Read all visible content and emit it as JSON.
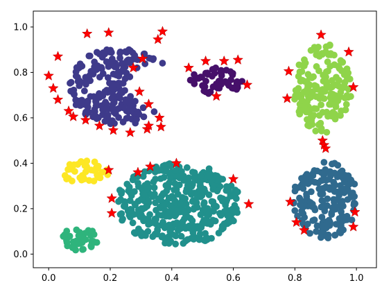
{
  "chart_data": {
    "type": "scatter",
    "title": "",
    "xlabel": "",
    "ylabel": "",
    "xlim": [
      -0.05,
      1.065
    ],
    "ylim": [
      -0.06,
      1.07
    ],
    "grid": false,
    "legend": "none",
    "x_ticks": [
      "0.0",
      "0.2",
      "0.4",
      "0.6",
      "0.8",
      "1.0"
    ],
    "x_tick_values": [
      0.0,
      0.2,
      0.4,
      0.6,
      0.8,
      1.0
    ],
    "y_ticks": [
      "0.0",
      "0.2",
      "0.4",
      "0.6",
      "0.8",
      "1.0"
    ],
    "y_tick_values": [
      0.0,
      0.2,
      0.4,
      0.6,
      0.8,
      1.0
    ],
    "clusters": [
      {
        "color": "#3e3a8a",
        "shape": "crescent",
        "center": [
          0.235,
          0.74
        ],
        "radius": 0.17,
        "inner_center": [
          0.36,
          0.74
        ],
        "inner_radius": 0.1,
        "count": 220
      },
      {
        "color": "#46106a",
        "shape": "ellipse",
        "center": [
          0.545,
          0.765
        ],
        "rx": 0.085,
        "ry": 0.062,
        "count": 55
      },
      {
        "color": "#8fd44a",
        "shape": "ellipse",
        "center": [
          0.89,
          0.73
        ],
        "rx": 0.095,
        "ry": 0.2,
        "count": 170
      },
      {
        "color": "#fde725",
        "shape": "ellipse",
        "center": [
          0.12,
          0.36
        ],
        "rx": 0.075,
        "ry": 0.055,
        "count": 40
      },
      {
        "color": "#21908c",
        "shape": "ellipse",
        "center": [
          0.42,
          0.22
        ],
        "rx": 0.205,
        "ry": 0.18,
        "count": 400
      },
      {
        "color": "#306a8e",
        "shape": "ellipse",
        "center": [
          0.9,
          0.24
        ],
        "rx": 0.105,
        "ry": 0.17,
        "count": 180
      },
      {
        "color": "#2fb47c",
        "shape": "ellipse",
        "center": [
          0.1,
          0.065
        ],
        "rx": 0.06,
        "ry": 0.052,
        "count": 40
      }
    ],
    "marker_color": "#ff0000",
    "markers": [
      [
        0.125,
        0.97
      ],
      [
        0.195,
        0.975
      ],
      [
        0.355,
        0.945
      ],
      [
        0.37,
        0.98
      ],
      [
        0.03,
        0.87
      ],
      [
        0.305,
        0.86
      ],
      [
        0.275,
        0.82
      ],
      [
        0.0,
        0.785
      ],
      [
        0.015,
        0.73
      ],
      [
        0.03,
        0.68
      ],
      [
        0.295,
        0.715
      ],
      [
        0.325,
        0.66
      ],
      [
        0.065,
        0.63
      ],
      [
        0.08,
        0.605
      ],
      [
        0.12,
        0.59
      ],
      [
        0.165,
        0.565
      ],
      [
        0.21,
        0.545
      ],
      [
        0.265,
        0.535
      ],
      [
        0.32,
        0.55
      ],
      [
        0.325,
        0.565
      ],
      [
        0.36,
        0.6
      ],
      [
        0.365,
        0.56
      ],
      [
        0.455,
        0.82
      ],
      [
        0.51,
        0.85
      ],
      [
        0.57,
        0.85
      ],
      [
        0.615,
        0.855
      ],
      [
        0.645,
        0.745
      ],
      [
        0.545,
        0.695
      ],
      [
        0.78,
        0.805
      ],
      [
        0.885,
        0.965
      ],
      [
        0.975,
        0.89
      ],
      [
        0.99,
        0.735
      ],
      [
        0.775,
        0.685
      ],
      [
        0.89,
        0.5
      ],
      [
        0.895,
        0.48
      ],
      [
        0.9,
        0.465
      ],
      [
        0.195,
        0.37
      ],
      [
        0.29,
        0.36
      ],
      [
        0.33,
        0.385
      ],
      [
        0.415,
        0.4
      ],
      [
        0.6,
        0.33
      ],
      [
        0.205,
        0.245
      ],
      [
        0.205,
        0.18
      ],
      [
        0.65,
        0.22
      ],
      [
        0.785,
        0.23
      ],
      [
        0.995,
        0.185
      ],
      [
        0.805,
        0.14
      ],
      [
        0.83,
        0.105
      ],
      [
        0.99,
        0.12
      ]
    ]
  }
}
